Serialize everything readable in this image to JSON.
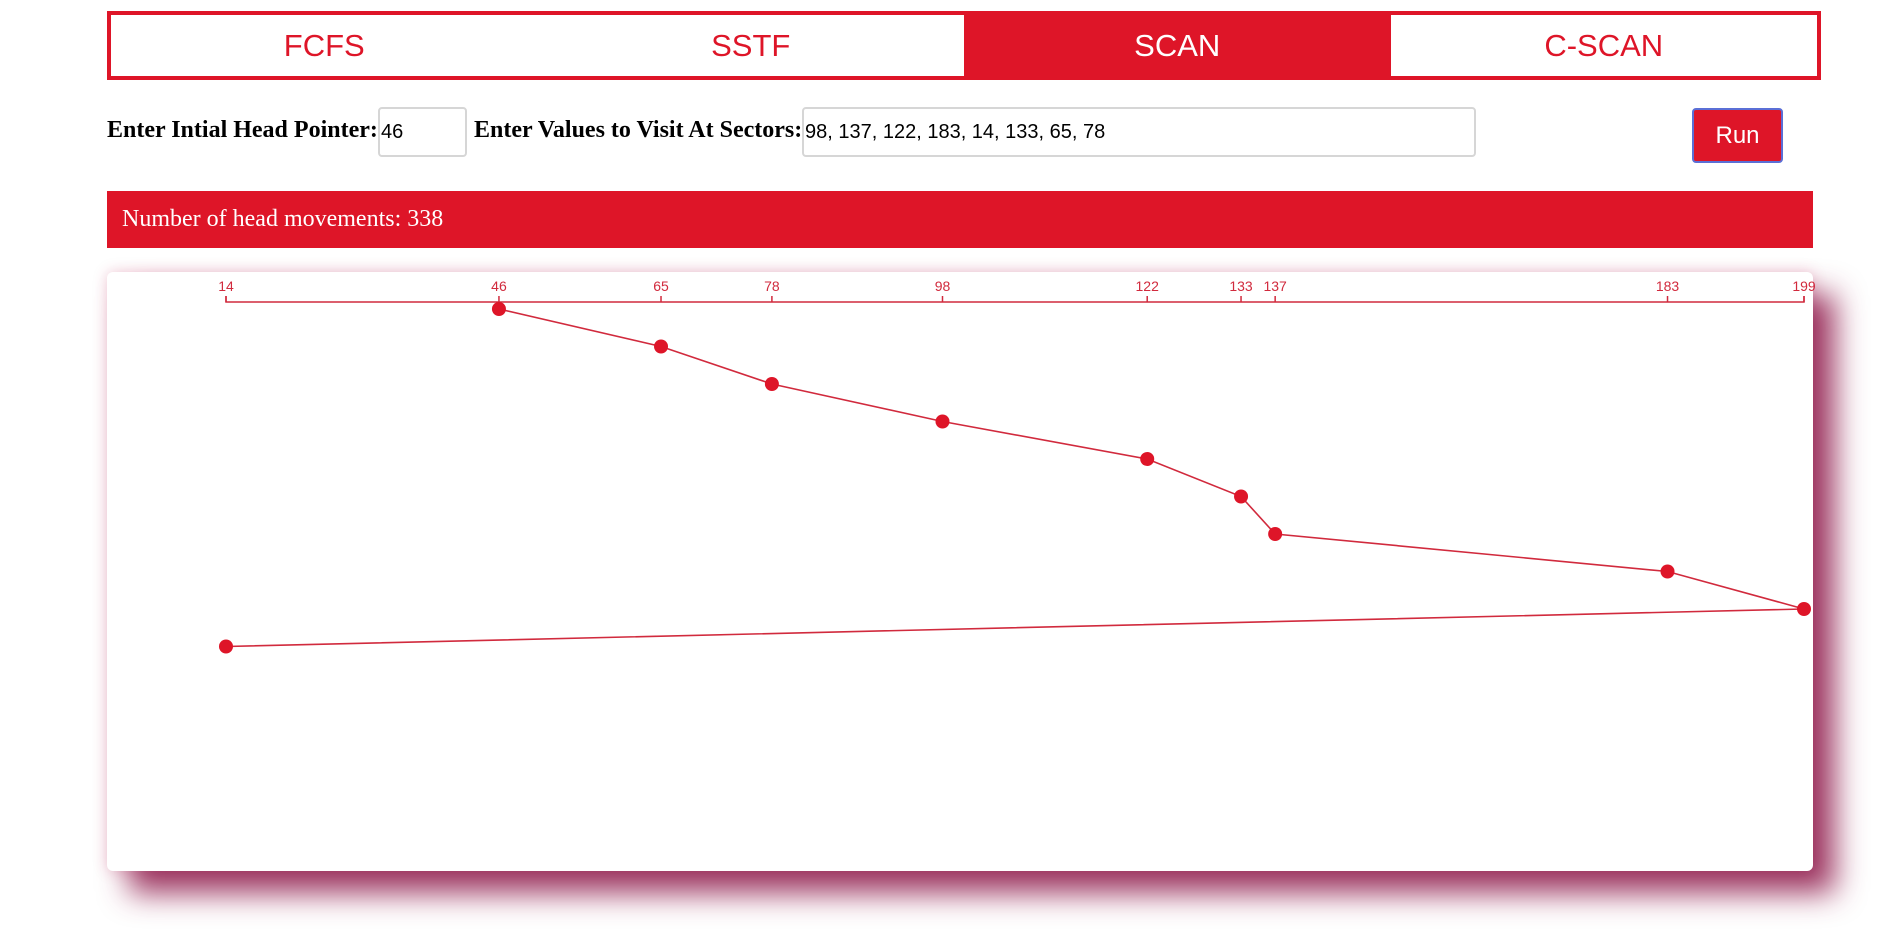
{
  "tabs": [
    {
      "label": "FCFS",
      "active": false
    },
    {
      "label": "SSTF",
      "active": false
    },
    {
      "label": "SCAN",
      "active": true
    },
    {
      "label": "C-SCAN",
      "active": false
    }
  ],
  "form": {
    "head_label": "Enter Intial Head Pointer:",
    "head_value": "46",
    "values_label": "Enter Values to Visit At Sectors:",
    "values_value": "98, 137, 122, 183, 14, 133, 65, 78",
    "run_label": "Run"
  },
  "result": {
    "text": "Number of head movements: 338"
  },
  "colors": {
    "accent": "#de1528",
    "line": "#d12a3d"
  },
  "chart_data": {
    "type": "line",
    "title": "",
    "xlabel": "",
    "ylabel": "",
    "x_axis_position": "top",
    "xlim": [
      14,
      199
    ],
    "tick_labels": [
      "14",
      "46",
      "65",
      "78",
      "98",
      "122",
      "133",
      "137",
      "183",
      "199"
    ],
    "series": [
      {
        "points": [
          {
            "step": 0,
            "x": 46
          },
          {
            "step": 1,
            "x": 65
          },
          {
            "step": 2,
            "x": 78
          },
          {
            "step": 3,
            "x": 98
          },
          {
            "step": 4,
            "x": 122
          },
          {
            "step": 5,
            "x": 133
          },
          {
            "step": 6,
            "x": 137
          },
          {
            "step": 7,
            "x": 183
          },
          {
            "step": 8,
            "x": 199
          },
          {
            "step": 9,
            "x": 14
          }
        ]
      }
    ],
    "grid": false,
    "legend": false
  }
}
